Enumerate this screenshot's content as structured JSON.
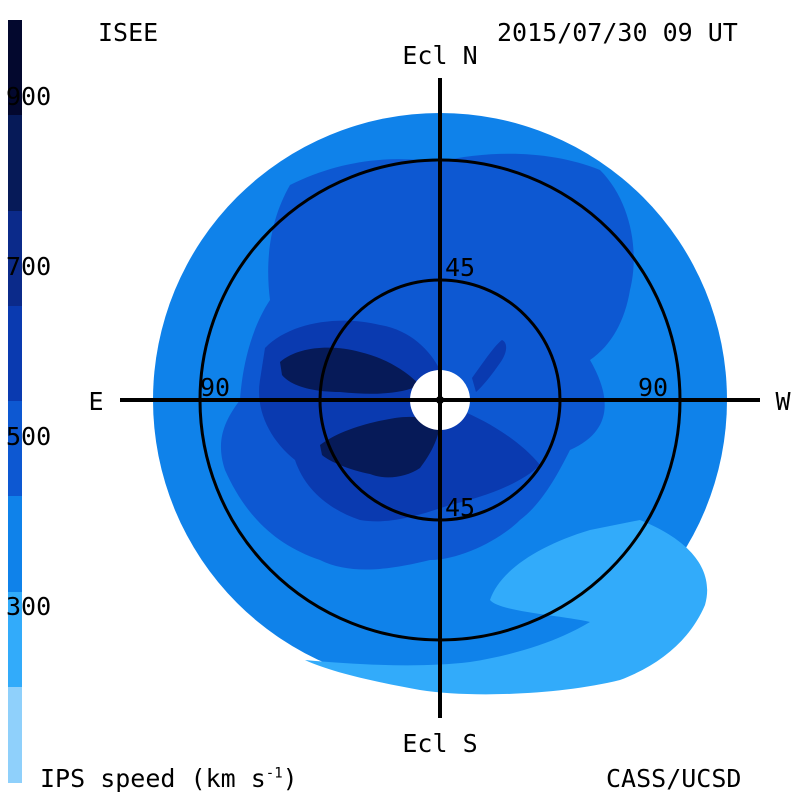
{
  "header": {
    "observatory": "ISEE",
    "timestamp": "2015/07/30 09 UT"
  },
  "footer": {
    "colorbar_title": "IPS speed (km s",
    "colorbar_title_exponent": "-1",
    "colorbar_title_close": ")",
    "credit": "CASS/UCSD"
  },
  "colorbar": {
    "tick_labels": [
      "900",
      "700",
      "500",
      "300"
    ],
    "colors": [
      "#03082e",
      "#061a58",
      "#0b2a8a",
      "#0a3ab0",
      "#0d58d2",
      "#0f82ea",
      "#32abfa",
      "#8fd0fb"
    ]
  },
  "map": {
    "labels": {
      "north": "Ecl N",
      "south": "Ecl S",
      "east": "E",
      "west": "W",
      "inner_ring_north": "45",
      "inner_ring_south": "45",
      "outer_ring_east": "90",
      "outer_ring_west": "90"
    },
    "region_colors": {
      "background_speed": "#0f82ea",
      "moderate_speed": "#0d58d2",
      "high_speed": "#0a3ab0",
      "very_high_speed": "#061a58",
      "low_speed": "#32abfa",
      "sun_occulter": "#ffffff"
    }
  }
}
